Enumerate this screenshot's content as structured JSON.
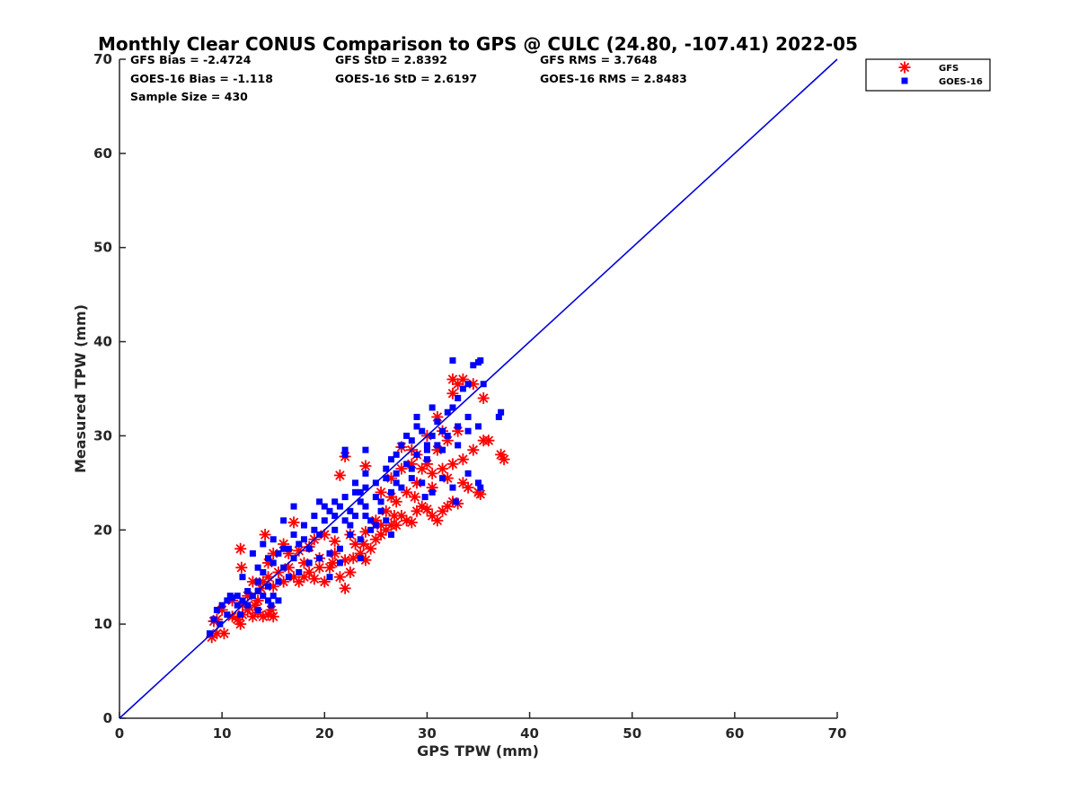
{
  "chart_data": {
    "type": "scatter",
    "title": "Monthly Clear CONUS Comparison to GPS @ CULC (24.80, -107.41) 2022-05",
    "xlabel": "GPS TPW (mm)",
    "ylabel": "Measured TPW (mm)",
    "xlim": [
      0,
      70
    ],
    "ylim": [
      0,
      70
    ],
    "xticks": [
      "0",
      "10",
      "20",
      "30",
      "40",
      "50",
      "60",
      "70"
    ],
    "yticks": [
      "0",
      "10",
      "20",
      "30",
      "40",
      "50",
      "60",
      "70"
    ],
    "legend_position": "top-right",
    "stats": {
      "gfs_bias": "GFS Bias = -2.4724",
      "gfs_std": "GFS StD = 2.8392",
      "gfs_rms": "GFS RMS = 3.7648",
      "goes_bias": "GOES-16 Bias = -1.118",
      "goes_std": "GOES-16 StD = 2.6197",
      "goes_rms": "GOES-16 RMS = 2.8483",
      "sample_size": "Sample Size = 430"
    },
    "reference_line": {
      "x": [
        0,
        70
      ],
      "y": [
        0,
        70
      ],
      "color": "#0000dd"
    },
    "series": [
      {
        "name": "GFS",
        "marker": "asterisk",
        "color": "#ff0000",
        "points": [
          [
            9.0,
            8.6
          ],
          [
            9.5,
            9.0
          ],
          [
            10.2,
            9.0
          ],
          [
            9.2,
            10.3
          ],
          [
            11.0,
            10.8
          ],
          [
            11.5,
            10.5
          ],
          [
            11.8,
            10.0
          ],
          [
            12.0,
            11.0
          ],
          [
            12.5,
            11.5
          ],
          [
            13.0,
            10.8
          ],
          [
            13.5,
            11.2
          ],
          [
            14.0,
            10.8
          ],
          [
            14.5,
            11.0
          ],
          [
            15.0,
            10.8
          ],
          [
            14.8,
            11.5
          ],
          [
            13.2,
            12.0
          ],
          [
            11.8,
            18.0
          ],
          [
            11.9,
            16.0
          ],
          [
            13.5,
            12.5
          ],
          [
            14.0,
            14.5
          ],
          [
            14.5,
            15.0
          ],
          [
            15.0,
            14.0
          ],
          [
            15.5,
            15.5
          ],
          [
            16.0,
            14.5
          ],
          [
            16.5,
            16.0
          ],
          [
            17.0,
            15.0
          ],
          [
            17.5,
            14.5
          ],
          [
            18.0,
            16.5
          ],
          [
            18.5,
            15.5
          ],
          [
            19.0,
            14.8
          ],
          [
            19.5,
            17.0
          ],
          [
            20.0,
            14.5
          ],
          [
            20.5,
            16.0
          ],
          [
            21.0,
            17.5
          ],
          [
            21.5,
            15.0
          ],
          [
            22.0,
            13.8
          ],
          [
            22.5,
            15.5
          ],
          [
            22.0,
            16.8
          ],
          [
            23.0,
            18.5
          ],
          [
            23.5,
            17.5
          ],
          [
            24.0,
            16.8
          ],
          [
            24.5,
            18.0
          ],
          [
            25.0,
            19.0
          ],
          [
            25.5,
            19.5
          ],
          [
            26.0,
            20.0
          ],
          [
            26.5,
            20.5
          ],
          [
            27.0,
            20.5
          ],
          [
            27.5,
            21.5
          ],
          [
            28.0,
            21.0
          ],
          [
            28.5,
            20.8
          ],
          [
            29.0,
            22.0
          ],
          [
            29.5,
            22.5
          ],
          [
            30.0,
            22.2
          ],
          [
            30.5,
            21.5
          ],
          [
            31.0,
            21.0
          ],
          [
            31.5,
            22.0
          ],
          [
            32.0,
            22.5
          ],
          [
            32.5,
            23.0
          ],
          [
            33.0,
            22.8
          ],
          [
            34.0,
            24.5
          ],
          [
            35.0,
            24.0
          ],
          [
            35.2,
            23.8
          ],
          [
            35.5,
            29.5
          ],
          [
            36.0,
            29.5
          ],
          [
            37.2,
            28.0
          ],
          [
            37.5,
            27.5
          ],
          [
            34.5,
            28.5
          ],
          [
            33.5,
            27.5
          ],
          [
            32.5,
            27.0
          ],
          [
            31.5,
            26.5
          ],
          [
            30.5,
            26.0
          ],
          [
            29.5,
            26.5
          ],
          [
            28.5,
            27.0
          ],
          [
            27.5,
            26.5
          ],
          [
            26.5,
            25.5
          ],
          [
            25.5,
            24.0
          ],
          [
            26.5,
            23.5
          ],
          [
            24.0,
            26.8
          ],
          [
            21.5,
            25.8
          ],
          [
            22.0,
            27.8
          ],
          [
            17.0,
            20.8
          ],
          [
            14.2,
            19.5
          ],
          [
            15.0,
            17.5
          ],
          [
            16.0,
            18.5
          ],
          [
            17.5,
            17.8
          ],
          [
            18.5,
            18.2
          ],
          [
            19.0,
            19.0
          ],
          [
            20.0,
            19.5
          ],
          [
            21.0,
            18.8
          ],
          [
            22.5,
            19.5
          ],
          [
            24.0,
            19.8
          ],
          [
            25.0,
            21.0
          ],
          [
            26.0,
            22.0
          ],
          [
            27.0,
            23.0
          ],
          [
            28.0,
            24.0
          ],
          [
            29.0,
            25.0
          ],
          [
            30.0,
            27.0
          ],
          [
            31.0,
            28.5
          ],
          [
            32.0,
            29.5
          ],
          [
            33.0,
            30.5
          ],
          [
            31.0,
            32.0
          ],
          [
            32.5,
            34.5
          ],
          [
            33.5,
            36.0
          ],
          [
            34.5,
            35.5
          ],
          [
            35.5,
            34.0
          ],
          [
            32.5,
            36.0
          ],
          [
            33.0,
            35.5
          ],
          [
            30.0,
            30.0
          ],
          [
            31.5,
            30.5
          ],
          [
            29.0,
            28.0
          ],
          [
            27.5,
            28.8
          ],
          [
            28.5,
            28.5
          ],
          [
            13.0,
            14.5
          ],
          [
            12.5,
            13.0
          ],
          [
            11.0,
            12.5
          ],
          [
            10.0,
            11.5
          ],
          [
            9.5,
            10.5
          ],
          [
            12.0,
            12.0
          ],
          [
            13.8,
            13.8
          ],
          [
            14.5,
            16.5
          ],
          [
            16.5,
            17.5
          ],
          [
            18.0,
            15.0
          ],
          [
            19.5,
            16.0
          ],
          [
            20.8,
            16.5
          ],
          [
            22.8,
            17.0
          ],
          [
            23.8,
            18.5
          ],
          [
            25.5,
            20.5
          ],
          [
            26.8,
            21.5
          ],
          [
            28.8,
            23.5
          ],
          [
            30.5,
            24.5
          ],
          [
            32.0,
            25.5
          ],
          [
            33.5,
            25.0
          ]
        ]
      },
      {
        "name": "GOES-16",
        "marker": "square",
        "color": "#0000ff",
        "points": [
          [
            8.8,
            9.0
          ],
          [
            9.2,
            10.5
          ],
          [
            9.5,
            11.5
          ],
          [
            10.0,
            12.0
          ],
          [
            10.5,
            12.5
          ],
          [
            11.0,
            12.8
          ],
          [
            11.5,
            13.0
          ],
          [
            12.0,
            12.5
          ],
          [
            12.5,
            12.0
          ],
          [
            13.0,
            13.0
          ],
          [
            13.5,
            13.5
          ],
          [
            14.0,
            13.0
          ],
          [
            14.5,
            12.5
          ],
          [
            15.0,
            13.0
          ],
          [
            15.5,
            12.5
          ],
          [
            12.0,
            15.0
          ],
          [
            13.5,
            16.0
          ],
          [
            14.0,
            15.5
          ],
          [
            14.5,
            17.0
          ],
          [
            15.0,
            16.5
          ],
          [
            15.5,
            17.5
          ],
          [
            16.0,
            16.0
          ],
          [
            16.5,
            18.0
          ],
          [
            17.0,
            17.0
          ],
          [
            17.5,
            18.5
          ],
          [
            18.0,
            19.0
          ],
          [
            18.5,
            18.0
          ],
          [
            19.0,
            20.0
          ],
          [
            19.5,
            19.5
          ],
          [
            20.0,
            21.0
          ],
          [
            20.5,
            22.0
          ],
          [
            21.0,
            21.5
          ],
          [
            21.5,
            22.5
          ],
          [
            22.0,
            21.0
          ],
          [
            22.5,
            22.0
          ],
          [
            23.0,
            21.5
          ],
          [
            23.5,
            23.0
          ],
          [
            24.0,
            22.5
          ],
          [
            24.5,
            21.0
          ],
          [
            25.0,
            20.5
          ],
          [
            25.5,
            22.0
          ],
          [
            22.0,
            28.0
          ],
          [
            22.0,
            28.5
          ],
          [
            23.0,
            25.0
          ],
          [
            23.5,
            24.0
          ],
          [
            24.0,
            26.0
          ],
          [
            24.0,
            28.5
          ],
          [
            26.0,
            26.5
          ],
          [
            26.5,
            27.5
          ],
          [
            27.0,
            28.0
          ],
          [
            27.5,
            29.0
          ],
          [
            28.0,
            30.0
          ],
          [
            28.5,
            29.5
          ],
          [
            29.0,
            31.0
          ],
          [
            29.5,
            30.5
          ],
          [
            30.0,
            29.0
          ],
          [
            30.5,
            30.0
          ],
          [
            31.0,
            31.5
          ],
          [
            31.5,
            30.5
          ],
          [
            32.0,
            32.5
          ],
          [
            32.5,
            33.0
          ],
          [
            33.0,
            34.0
          ],
          [
            33.5,
            35.0
          ],
          [
            34.0,
            35.5
          ],
          [
            32.5,
            38.0
          ],
          [
            34.5,
            37.5
          ],
          [
            35.0,
            37.8
          ],
          [
            35.2,
            38.0
          ],
          [
            35.5,
            35.5
          ],
          [
            37.0,
            32.0
          ],
          [
            37.2,
            32.5
          ],
          [
            35.0,
            31.0
          ],
          [
            34.0,
            30.5
          ],
          [
            33.0,
            29.0
          ],
          [
            35.0,
            25.0
          ],
          [
            35.2,
            24.5
          ],
          [
            34.0,
            26.0
          ],
          [
            32.5,
            24.5
          ],
          [
            31.5,
            25.5
          ],
          [
            30.5,
            24.0
          ],
          [
            29.5,
            25.0
          ],
          [
            28.5,
            25.5
          ],
          [
            27.5,
            24.5
          ],
          [
            26.5,
            24.0
          ],
          [
            26.0,
            21.0
          ],
          [
            25.0,
            23.5
          ],
          [
            24.5,
            20.0
          ],
          [
            23.5,
            19.0
          ],
          [
            22.5,
            19.5
          ],
          [
            21.5,
            18.0
          ],
          [
            20.5,
            17.5
          ],
          [
            19.5,
            17.0
          ],
          [
            18.5,
            16.5
          ],
          [
            17.5,
            15.5
          ],
          [
            16.5,
            15.0
          ],
          [
            15.5,
            14.5
          ],
          [
            14.5,
            14.0
          ],
          [
            13.5,
            14.5
          ],
          [
            12.5,
            13.5
          ],
          [
            11.5,
            12.0
          ],
          [
            10.5,
            11.0
          ],
          [
            9.8,
            10.0
          ],
          [
            13.0,
            17.5
          ],
          [
            14.0,
            18.5
          ],
          [
            15.0,
            19.0
          ],
          [
            16.0,
            18.0
          ],
          [
            17.0,
            19.5
          ],
          [
            18.0,
            20.5
          ],
          [
            19.0,
            21.5
          ],
          [
            20.0,
            22.5
          ],
          [
            21.0,
            23.0
          ],
          [
            22.0,
            23.5
          ],
          [
            23.0,
            24.0
          ],
          [
            24.0,
            24.5
          ],
          [
            25.0,
            25.0
          ],
          [
            26.0,
            25.5
          ],
          [
            27.0,
            26.0
          ],
          [
            28.0,
            27.0
          ],
          [
            29.0,
            28.0
          ],
          [
            30.0,
            28.5
          ],
          [
            31.0,
            29.0
          ],
          [
            32.0,
            30.0
          ],
          [
            33.0,
            31.0
          ],
          [
            34.0,
            32.0
          ],
          [
            16.0,
            21.0
          ],
          [
            17.0,
            22.5
          ],
          [
            19.5,
            23.0
          ],
          [
            21.0,
            20.0
          ],
          [
            22.5,
            20.5
          ],
          [
            24.0,
            21.5
          ],
          [
            25.5,
            23.0
          ],
          [
            27.0,
            25.0
          ],
          [
            28.5,
            26.5
          ],
          [
            30.0,
            27.5
          ],
          [
            31.5,
            28.5
          ],
          [
            29.0,
            32.0
          ],
          [
            30.5,
            33.0
          ],
          [
            13.5,
            11.5
          ],
          [
            14.8,
            12.0
          ],
          [
            10.8,
            13.0
          ],
          [
            11.8,
            11.0
          ],
          [
            20.5,
            15.0
          ],
          [
            21.5,
            16.5
          ],
          [
            23.5,
            17.0
          ],
          [
            26.5,
            19.5
          ],
          [
            29.8,
            23.5
          ],
          [
            32.8,
            23.0
          ]
        ]
      }
    ]
  }
}
